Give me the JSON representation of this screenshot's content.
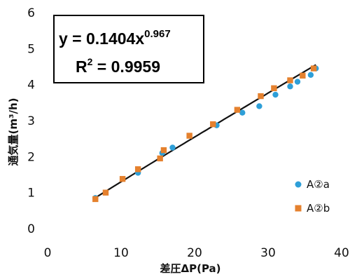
{
  "chart_data": {
    "type": "scatter",
    "xlabel": "差圧ΔP(Pa)",
    "ylabel": "通気量(m³/h)",
    "xlim": [
      0,
      40
    ],
    "ylim": [
      0,
      6
    ],
    "x_ticks": [
      "0",
      "10",
      "20",
      "30",
      "40"
    ],
    "y_ticks": [
      "0",
      "1",
      "2",
      "3",
      "4",
      "5",
      "6"
    ],
    "grid": false,
    "legend_position": "right",
    "annotation": {
      "equation_prefix": "y = 0.1404x",
      "equation_exponent": "0.967",
      "r2_prefix": "R",
      "r2_exponent": "2",
      "r2_suffix": " = 0.9959"
    },
    "trendline": {
      "type": "power",
      "a": 0.1404,
      "b": 0.967,
      "x_range": [
        6.5,
        36.5
      ],
      "color": "#111111"
    },
    "series": [
      {
        "name": "A②a",
        "marker": "circle",
        "color": "#2E9FD8",
        "points": [
          [
            6.5,
            0.85
          ],
          [
            12.3,
            1.55
          ],
          [
            15.6,
            2.1
          ],
          [
            17.0,
            2.25
          ],
          [
            23.0,
            2.87
          ],
          [
            26.5,
            3.22
          ],
          [
            28.8,
            3.4
          ],
          [
            31.0,
            3.72
          ],
          [
            33.0,
            3.95
          ],
          [
            34.0,
            4.08
          ],
          [
            35.8,
            4.27
          ],
          [
            36.5,
            4.45
          ]
        ]
      },
      {
        "name": "A②b",
        "marker": "square",
        "color": "#E5812E",
        "points": [
          [
            6.5,
            0.82
          ],
          [
            7.9,
            1.0
          ],
          [
            10.2,
            1.38
          ],
          [
            12.3,
            1.65
          ],
          [
            15.3,
            1.95
          ],
          [
            15.8,
            2.18
          ],
          [
            19.3,
            2.58
          ],
          [
            22.5,
            2.9
          ],
          [
            25.8,
            3.3
          ],
          [
            29.0,
            3.68
          ],
          [
            30.8,
            3.9
          ],
          [
            33.0,
            4.12
          ],
          [
            34.7,
            4.25
          ],
          [
            36.2,
            4.45
          ]
        ]
      }
    ]
  }
}
